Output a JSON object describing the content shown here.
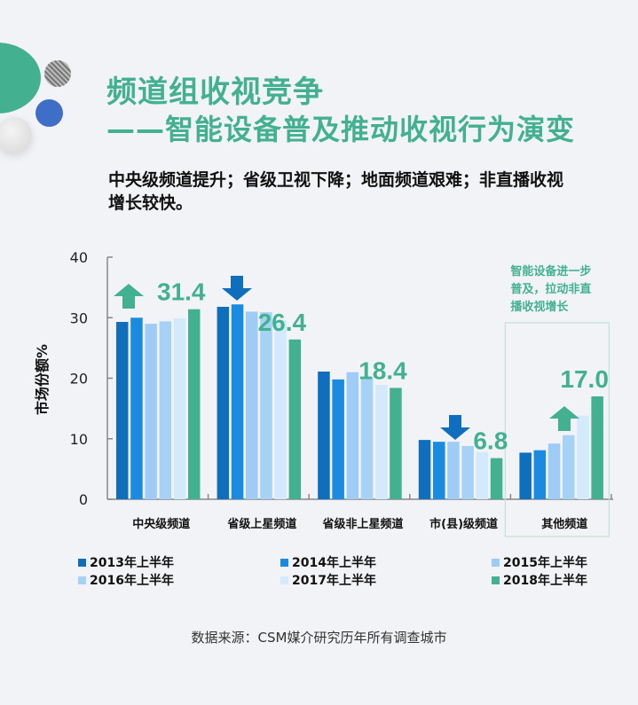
{
  "header": {
    "title": "频道组收视竞争",
    "subtitle": "——智能设备普及推动收视行为演变",
    "summary": "中央级频道提升；省级卫视下降；地面频道艰难；非直播收视增长较快。"
  },
  "colors": {
    "accent_green": "#43b18f",
    "s2013": "#0f6fbd",
    "s2014": "#1a8be0",
    "s2015": "#9fccf7",
    "s2016": "#a6d2f6",
    "s2017": "#d3eafc",
    "s2018": "#43b18f",
    "arrow_blue": "#0f6fbd"
  },
  "chart_data": {
    "type": "bar",
    "title": "频道组收视竞争",
    "xlabel": "",
    "ylabel": "市场份额%",
    "ylim": [
      0,
      40
    ],
    "yticks": [
      0,
      10,
      20,
      30,
      40
    ],
    "grid": false,
    "legend_position": "bottom",
    "categories": [
      "中央级频道",
      "省级上星频道",
      "省级非上星频道",
      "市(县)级频道",
      "其他频道"
    ],
    "series": [
      {
        "name": "2013年上半年",
        "values": [
          29.3,
          31.8,
          21.1,
          9.8,
          7.7
        ]
      },
      {
        "name": "2014年上半年",
        "values": [
          30.0,
          32.2,
          19.8,
          9.5,
          8.1
        ]
      },
      {
        "name": "2015年上半年",
        "values": [
          29.0,
          31.0,
          21.0,
          9.5,
          9.2
        ]
      },
      {
        "name": "2016年上半年",
        "values": [
          29.4,
          30.9,
          20.2,
          8.8,
          10.6
        ]
      },
      {
        "name": "2017年上半年",
        "values": [
          29.9,
          29.6,
          18.9,
          7.8,
          13.8
        ]
      },
      {
        "name": "2018年上半年",
        "values": [
          31.4,
          26.4,
          18.4,
          6.8,
          17.0
        ]
      }
    ],
    "value_labels": [
      "31.4",
      "26.4",
      "18.4",
      "6.8",
      "17.0"
    ],
    "annotations": [
      {
        "category": "中央级频道",
        "arrow": "up",
        "color": "green"
      },
      {
        "category": "省级上星频道",
        "arrow": "down",
        "color": "blue"
      },
      {
        "category": "市(县)级频道",
        "arrow": "down",
        "color": "blue"
      },
      {
        "category": "其他频道",
        "arrow": "up",
        "color": "green"
      },
      {
        "category": "其他频道",
        "text": "智能设备进一步普及，拉动非直播收视增长",
        "boxed": true
      }
    ]
  },
  "annotation_note": {
    "lines": [
      "智能设备进一步",
      "普及，拉动非直",
      "播收视增长"
    ]
  },
  "legend": {
    "items": [
      "2013年上半年",
      "2014年上半年",
      "2015年上半年",
      "2016年上半年",
      "2017年上半年",
      "2018年上半年"
    ]
  },
  "footer": {
    "source": "数据来源：CSM媒介研究历年所有调查城市"
  }
}
